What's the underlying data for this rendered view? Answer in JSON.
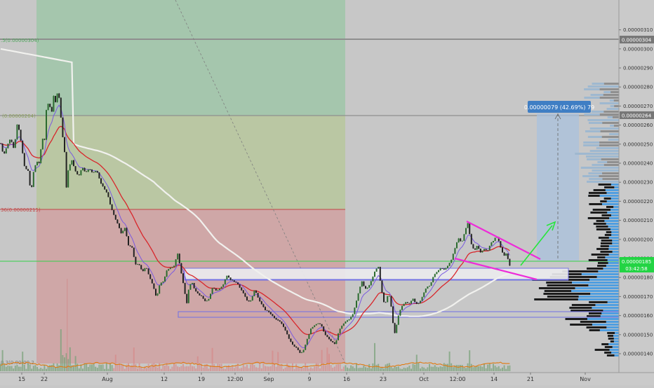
{
  "colors": {
    "background": "#c7c7c7",
    "up_candle": "#2b6b2f",
    "down_candle": "#222222",
    "ema_red": "#d8262b",
    "ma_white": "#f1f1ee",
    "ma_purple": "#7a5ae0",
    "triangle_line": "#ee2bd9",
    "arrow": "#27e63b",
    "price_tag": "#23d444",
    "measure_label": "#3f7ec4",
    "volume": "#e07a10"
  },
  "chart_data": {
    "type": "candlestick",
    "x_ticks": [
      "15",
      "22",
      "Aug",
      "12",
      "19",
      "12:00",
      "Sep",
      "9",
      "16",
      "23",
      "Oct",
      "12:00",
      "14",
      "21",
      "Nov"
    ],
    "y_ticks": [
      "0.00000310",
      "0.00000300",
      "0.00000290",
      "0.00000280",
      "0.00000270",
      "0.00000260",
      "0.00000250",
      "0.00000240",
      "0.00000230",
      "0.00000220",
      "0.00000210",
      "0.00000200",
      "0.00000190",
      "0.00000180",
      "0.00000170",
      "0.00000160",
      "0.00000150",
      "0.00000140"
    ],
    "ylim": [
      1.36e-06,
      3.18e-06
    ],
    "price_path": [
      [
        0,
        2.52e-06
      ],
      [
        5,
        2.44e-06
      ],
      [
        10,
        2.49e-06
      ],
      [
        15,
        2.53e-06
      ],
      [
        20,
        2.47e-06
      ],
      [
        25,
        2.62e-06
      ],
      [
        30,
        2.51e-06
      ],
      [
        35,
        2.38e-06
      ],
      [
        40,
        2.36e-06
      ],
      [
        44,
        2.24e-06
      ],
      [
        48,
        2.36e-06
      ],
      [
        52,
        2.41e-06
      ],
      [
        56,
        2.4e-06
      ],
      [
        60,
        2.53e-06
      ],
      [
        64,
        2.52e-06
      ],
      [
        66,
        2.68e-06
      ],
      [
        70,
        2.73e-06
      ],
      [
        73,
        2.64e-06
      ],
      [
        76,
        2.76e-06
      ],
      [
        79,
        2.72e-06
      ],
      [
        83,
        2.79e-06
      ],
      [
        86,
        2.67e-06
      ],
      [
        89,
        2.55e-06
      ],
      [
        92,
        2.46e-06
      ],
      [
        94,
        2.25e-06
      ],
      [
        97,
        2.36e-06
      ],
      [
        102,
        2.42e-06
      ],
      [
        107,
        2.36e-06
      ],
      [
        112,
        2.33e-06
      ],
      [
        117,
        2.38e-06
      ],
      [
        122,
        2.35e-06
      ],
      [
        127,
        2.37e-06
      ],
      [
        132,
        2.35e-06
      ],
      [
        138,
        2.36e-06
      ],
      [
        143,
        2.3e-06
      ],
      [
        148,
        2.27e-06
      ],
      [
        153,
        2.24e-06
      ],
      [
        158,
        2.17e-06
      ],
      [
        163,
        2.12e-06
      ],
      [
        168,
        2.08e-06
      ],
      [
        173,
        2.03e-06
      ],
      [
        178,
        2.06e-06
      ],
      [
        183,
        1.97e-06
      ],
      [
        188,
        1.96e-06
      ],
      [
        193,
        1.87e-06
      ],
      [
        198,
        1.87e-06
      ],
      [
        203,
        1.83e-06
      ],
      [
        208,
        1.86e-06
      ],
      [
        213,
        1.8e-06
      ],
      [
        218,
        1.76e-06
      ],
      [
        223,
        1.69e-06
      ],
      [
        228,
        1.77e-06
      ],
      [
        233,
        1.78e-06
      ],
      [
        238,
        1.84e-06
      ],
      [
        243,
        1.85e-06
      ],
      [
        248,
        1.86e-06
      ],
      [
        253,
        1.93e-06
      ],
      [
        256,
        1.87e-06
      ],
      [
        259,
        1.81e-06
      ],
      [
        262,
        1.75e-06
      ],
      [
        266,
        1.66e-06
      ],
      [
        269,
        1.74e-06
      ],
      [
        273,
        1.78e-06
      ],
      [
        278,
        1.73e-06
      ],
      [
        283,
        1.71e-06
      ],
      [
        288,
        1.7e-06
      ],
      [
        293,
        1.67e-06
      ],
      [
        298,
        1.69e-06
      ],
      [
        303,
        1.75e-06
      ],
      [
        308,
        1.73e-06
      ],
      [
        313,
        1.74e-06
      ],
      [
        318,
        1.76e-06
      ],
      [
        323,
        1.81e-06
      ],
      [
        328,
        1.79e-06
      ],
      [
        333,
        1.78e-06
      ],
      [
        338,
        1.77e-06
      ],
      [
        343,
        1.74e-06
      ],
      [
        348,
        1.71e-06
      ],
      [
        353,
        1.67e-06
      ],
      [
        358,
        1.68e-06
      ],
      [
        363,
        1.74e-06
      ],
      [
        368,
        1.69e-06
      ],
      [
        373,
        1.66e-06
      ],
      [
        378,
        1.63e-06
      ],
      [
        383,
        1.62e-06
      ],
      [
        388,
        1.6e-06
      ],
      [
        393,
        1.58e-06
      ],
      [
        398,
        1.57e-06
      ],
      [
        403,
        1.55e-06
      ],
      [
        408,
        1.51e-06
      ],
      [
        413,
        1.47e-06
      ],
      [
        418,
        1.44e-06
      ],
      [
        423,
        1.43e-06
      ],
      [
        428,
        1.4e-06
      ],
      [
        433,
        1.42e-06
      ],
      [
        438,
        1.48e-06
      ],
      [
        443,
        1.53e-06
      ],
      [
        448,
        1.55e-06
      ],
      [
        453,
        1.56e-06
      ],
      [
        458,
        1.55e-06
      ],
      [
        463,
        1.5e-06
      ],
      [
        468,
        1.48e-06
      ],
      [
        473,
        1.46e-06
      ],
      [
        478,
        1.45e-06
      ],
      [
        483,
        1.52e-06
      ],
      [
        488,
        1.55e-06
      ],
      [
        493,
        1.57e-06
      ],
      [
        498,
        1.58e-06
      ],
      [
        503,
        1.61e-06
      ],
      [
        507,
        1.66e-06
      ],
      [
        510,
        1.71e-06
      ],
      [
        513,
        1.75e-06
      ],
      [
        516,
        1.78e-06
      ],
      [
        520,
        1.74e-06
      ],
      [
        525,
        1.75e-06
      ],
      [
        530,
        1.79e-06
      ],
      [
        535,
        1.84e-06
      ],
      [
        539,
        1.86e-06
      ],
      [
        543,
        1.75e-06
      ],
      [
        548,
        1.65e-06
      ],
      [
        553,
        1.71e-06
      ],
      [
        556,
        1.7e-06
      ],
      [
        559,
        1.59e-06
      ],
      [
        562,
        1.5e-06
      ],
      [
        565,
        1.55e-06
      ],
      [
        569,
        1.62e-06
      ],
      [
        573,
        1.65e-06
      ],
      [
        578,
        1.67e-06
      ],
      [
        583,
        1.66e-06
      ],
      [
        588,
        1.69e-06
      ],
      [
        593,
        1.66e-06
      ],
      [
        598,
        1.67e-06
      ],
      [
        603,
        1.71e-06
      ],
      [
        608,
        1.75e-06
      ],
      [
        613,
        1.76e-06
      ],
      [
        618,
        1.81e-06
      ],
      [
        623,
        1.83e-06
      ],
      [
        628,
        1.85e-06
      ],
      [
        633,
        1.84e-06
      ],
      [
        638,
        1.86e-06
      ],
      [
        643,
        1.89e-06
      ],
      [
        648,
        1.95e-06
      ],
      [
        653,
        2.01e-06
      ],
      [
        658,
        1.98e-06
      ],
      [
        663,
        2.05e-06
      ],
      [
        667,
        2.09e-06
      ],
      [
        671,
        1.98e-06
      ],
      [
        676,
        1.94e-06
      ],
      [
        680,
        1.97e-06
      ],
      [
        685,
        1.93e-06
      ],
      [
        690,
        1.95e-06
      ],
      [
        695,
        1.94e-06
      ],
      [
        699,
        1.98e-06
      ],
      [
        703,
        1.99e-06
      ],
      [
        707,
        2.02e-06
      ],
      [
        710,
        2e-06
      ],
      [
        714,
        1.95e-06
      ],
      [
        718,
        1.91e-06
      ],
      [
        722,
        1.93e-06
      ],
      [
        726,
        1.86e-06
      ],
      [
        728,
        1.87e-06
      ]
    ],
    "levels": [
      {
        "label": "0.00000304",
        "price": 3.04e-06
      },
      {
        "label": "0.00000264",
        "price": 2.64e-06
      },
      {
        "label": "0.00000185",
        "price": 1.85e-06
      }
    ],
    "position": {
      "entry": 2.15e-06,
      "target": 3.04e-06,
      "stop": 1.36e-06
    },
    "measure_label": "0.00000079 (42.69%) 79",
    "countdown": "03:42:58",
    "left_labels": {
      "top": ".5(0.00000304)",
      "mid": "(0.00000264)",
      "low": "36(0.00000215)",
      "bottom": "0.3(0.00(00.2"
    }
  }
}
